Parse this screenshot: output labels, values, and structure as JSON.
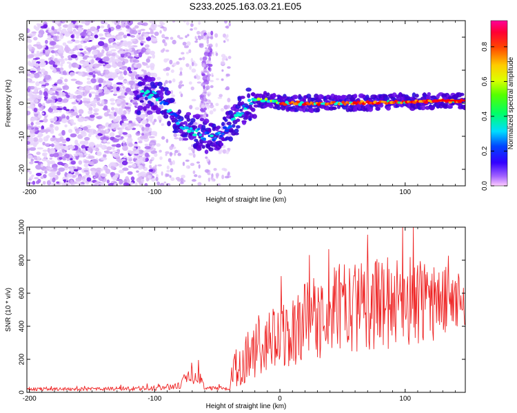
{
  "title": "S233.2025.163.03.21.E05",
  "colors": {
    "snr_line": "#ee2222",
    "spectrogram_low": "#cc99ff",
    "spectrogram_mid": "#6a10e8",
    "colormap": [
      "#ff00ff",
      "#ff0000",
      "#ffa500",
      "#ffff00",
      "#00ff00",
      "#00ffff",
      "#0000ff",
      "#ff00ff"
    ]
  },
  "chart_data": [
    {
      "type": "heatmap",
      "name": "spectrogram",
      "xlabel": "Height of straight line (km)",
      "ylabel": "Frequency (Hz)",
      "xlim": [
        -202,
        148
      ],
      "ylim": [
        -25,
        25
      ],
      "xticks": [
        -200,
        -100,
        0,
        100
      ],
      "yticks": [
        -20,
        -10,
        0,
        10,
        20
      ],
      "colorbar": {
        "label": "Normalized spectral amplitude",
        "range": [
          0,
          0.95
        ],
        "ticks": [
          0.0,
          0.2,
          0.4,
          0.6,
          0.8
        ]
      },
      "ridge": {
        "description_points_x": [
          -112,
          -100,
          -90,
          -80,
          -70,
          -60,
          -50,
          -45,
          -40,
          -30,
          -20,
          -10,
          0,
          20,
          50,
          100,
          148
        ],
        "description_points_y": [
          3,
          3,
          -1,
          -6,
          -8,
          -10,
          -10,
          -9,
          -7,
          -2,
          1,
          1,
          0,
          0,
          0,
          0.5,
          0.8
        ]
      }
    },
    {
      "type": "line",
      "name": "snr",
      "xlabel": "Height of straight line (km)",
      "ylabel": "SNR (10 * v/v)",
      "xlim": [
        -202,
        148
      ],
      "ylim": [
        0,
        1000
      ],
      "xticks": [
        -200,
        -100,
        0,
        100
      ],
      "yticks": [
        0,
        200,
        400,
        600,
        800,
        1000
      ],
      "envelope": {
        "x": [
          -202,
          -150,
          -100,
          -80,
          -75,
          -65,
          -60,
          -40,
          -38,
          -30,
          -20,
          -10,
          0,
          20,
          40,
          60,
          80,
          100,
          120,
          148
        ],
        "baseline": [
          20,
          20,
          25,
          40,
          90,
          100,
          30,
          20,
          120,
          200,
          250,
          280,
          330,
          420,
          500,
          520,
          540,
          560,
          550,
          560
        ],
        "spread": [
          10,
          10,
          15,
          20,
          40,
          50,
          15,
          10,
          100,
          150,
          180,
          200,
          220,
          250,
          270,
          280,
          280,
          290,
          260,
          150
        ]
      }
    }
  ]
}
